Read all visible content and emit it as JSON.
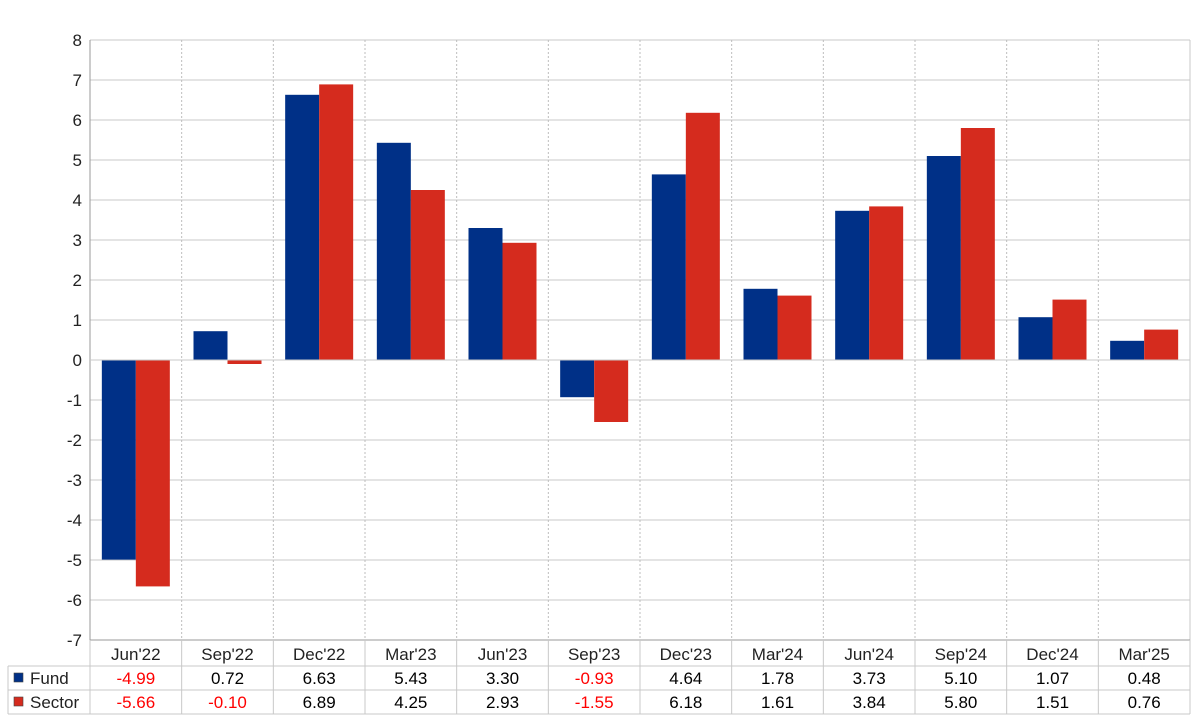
{
  "chart_data": {
    "type": "bar",
    "categories": [
      "Jun'22",
      "Sep'22",
      "Dec'22",
      "Mar'23",
      "Jun'23",
      "Sep'23",
      "Dec'23",
      "Mar'24",
      "Jun'24",
      "Sep'24",
      "Dec'24",
      "Mar'25"
    ],
    "series": [
      {
        "name": "Fund",
        "color": "#003087",
        "values": [
          -4.99,
          0.72,
          6.63,
          5.43,
          3.3,
          -0.93,
          4.64,
          1.78,
          3.73,
          5.1,
          1.07,
          0.48
        ],
        "labels": [
          "-4.99",
          "0.72",
          "6.63",
          "5.43",
          "3.30",
          "-0.93",
          "4.64",
          "1.78",
          "3.73",
          "5.10",
          "1.07",
          "0.48"
        ]
      },
      {
        "name": "Sector",
        "color": "#d52b1e",
        "values": [
          -5.66,
          -0.1,
          6.89,
          4.25,
          2.93,
          -1.55,
          6.18,
          1.61,
          3.84,
          5.8,
          1.51,
          0.76
        ],
        "labels": [
          "-5.66",
          "-0.10",
          "6.89",
          "4.25",
          "2.93",
          "-1.55",
          "6.18",
          "1.61",
          "3.84",
          "5.80",
          "1.51",
          "0.76"
        ]
      }
    ],
    "ylim": [
      -7,
      8
    ],
    "yticks": [
      "8",
      "7",
      "6",
      "5",
      "4",
      "3",
      "2",
      "1",
      "0",
      "-1",
      "-2",
      "-3",
      "-4",
      "-5",
      "-6",
      "-7"
    ],
    "grid": true,
    "legend": "data-table-bottom",
    "negative_label_color": "#ff0000",
    "positive_label_color": "#000000",
    "title": "",
    "xlabel": "",
    "ylabel": ""
  }
}
